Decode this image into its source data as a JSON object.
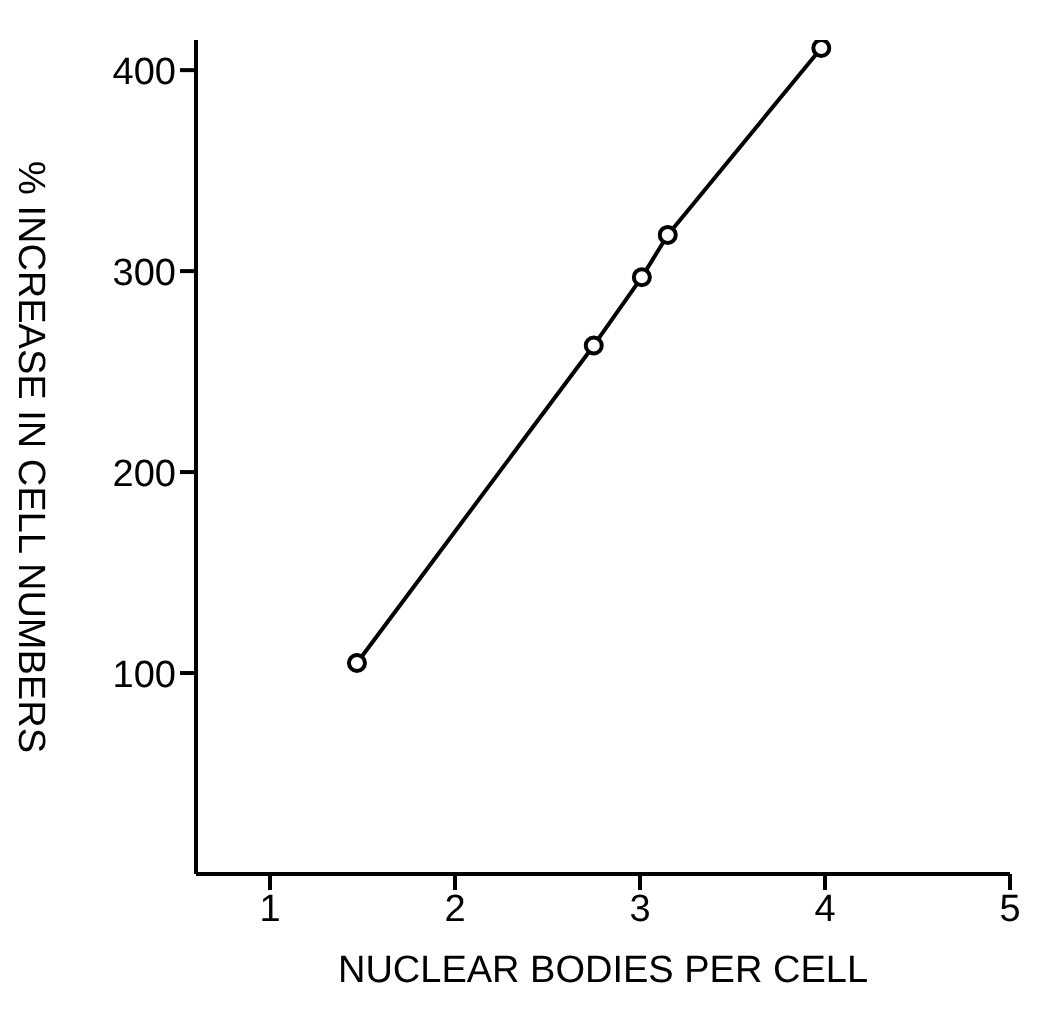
{
  "chart_data": {
    "type": "line",
    "xlabel": "NUCLEAR BODIES PER CELL",
    "ylabel": "% INCREASE IN CELL NUMBERS",
    "x": [
      1.47,
      2.75,
      3.01,
      3.15,
      3.98
    ],
    "series": [
      {
        "color": "#000000",
        "values": [
          105,
          263,
          297,
          318,
          411
        ]
      }
    ],
    "xlim": [
      0.6,
      5
    ],
    "xticks": [
      1,
      2,
      3,
      4,
      5
    ],
    "ylim": [
      0,
      415
    ],
    "yticks": [
      100,
      200,
      300,
      400
    ],
    "marker": "circle",
    "line_style": "solid"
  }
}
